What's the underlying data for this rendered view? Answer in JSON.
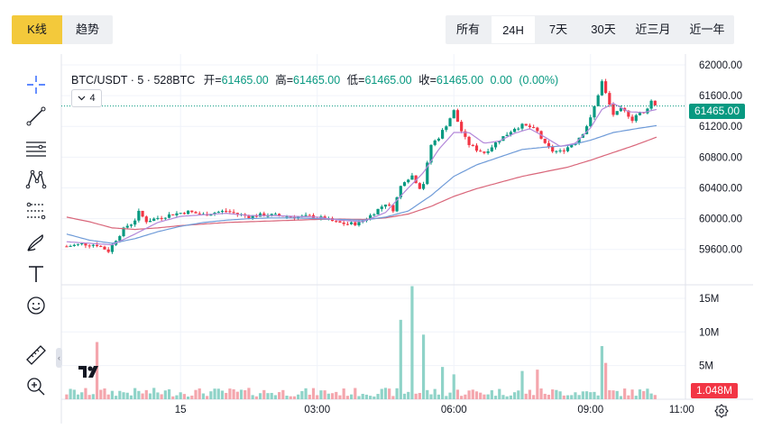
{
  "tabs_left": [
    {
      "label": "K线",
      "active": true
    },
    {
      "label": "趋势",
      "active": false
    }
  ],
  "tabs_right": [
    {
      "label": "所有"
    },
    {
      "label": "24H",
      "active": true
    },
    {
      "label": "7天"
    },
    {
      "label": "30天"
    },
    {
      "label": "近三月"
    },
    {
      "label": "近一年"
    }
  ],
  "tools": [
    "crosshair-icon",
    "trend-line-icon",
    "horizontal-lines-icon",
    "pattern-icon",
    "fib-icon",
    "brush-icon",
    "text-icon",
    "emoji-icon",
    "ruler-icon",
    "zoom-in-icon"
  ],
  "legend": {
    "symbol": "BTC/USDT · 5 · 528BTC",
    "open_label": "开=",
    "open": "61465.00",
    "high_label": "高=",
    "high": "61465.00",
    "low_label": "低=",
    "low": "61465.00",
    "close_label": "收=",
    "close": "61465.00",
    "change": "0.00",
    "change_pct": "(0.00%)"
  },
  "indicator_count": "4",
  "last_price_tag": "61465.00",
  "last_volume_tag": "1.048M",
  "colors": {
    "up": "#089981",
    "down": "#f23645",
    "up_vol": "#8fd3c8",
    "down_vol": "#f4a6ad",
    "ma_fast": "#b388d9",
    "ma_mid": "#6f9bd8",
    "ma_slow": "#d9667a",
    "accent": "#f3c93b"
  },
  "chart_data": {
    "type": "candlestick",
    "price_axis": {
      "ticks": [
        59600,
        60000,
        60400,
        60800,
        61200,
        61600,
        62000
      ],
      "labels": [
        "59600.00",
        "60000.00",
        "60400.00",
        "60800.00",
        "61200.00",
        "61600.00",
        "62000.00"
      ],
      "range": [
        59140,
        62140
      ]
    },
    "volume_axis": {
      "ticks": [
        5000000,
        10000000,
        15000000
      ],
      "labels": [
        "5M",
        "10M",
        "15M"
      ],
      "range": [
        0,
        17000000
      ]
    },
    "time_axis": {
      "labels": [
        "15",
        "03:00",
        "06:00",
        "09:00",
        "11:00"
      ],
      "range_minutes": [
        -157,
        665
      ],
      "label_minutes": [
        0,
        180,
        360,
        540,
        660
      ]
    },
    "last_price": 61465,
    "close_path": [
      [
        -150,
        59640
      ],
      [
        -130,
        59670
      ],
      [
        -110,
        59660
      ],
      [
        -95,
        59580
      ],
      [
        -85,
        59730
      ],
      [
        -72,
        59900
      ],
      [
        -62,
        59950
      ],
      [
        -55,
        60080
      ],
      [
        -45,
        59970
      ],
      [
        -30,
        60010
      ],
      [
        -10,
        60060
      ],
      [
        10,
        60090
      ],
      [
        30,
        60050
      ],
      [
        45,
        60080
      ],
      [
        60,
        60100
      ],
      [
        75,
        60060
      ],
      [
        90,
        60030
      ],
      [
        110,
        60050
      ],
      [
        130,
        60040
      ],
      [
        150,
        60020
      ],
      [
        170,
        60030
      ],
      [
        190,
        60000
      ],
      [
        205,
        59950
      ],
      [
        220,
        59930
      ],
      [
        235,
        59940
      ],
      [
        250,
        60040
      ],
      [
        260,
        60120
      ],
      [
        270,
        60200
      ],
      [
        280,
        60120
      ],
      [
        292,
        60480
      ],
      [
        305,
        60560
      ],
      [
        318,
        60360
      ],
      [
        330,
        60960
      ],
      [
        340,
        61060
      ],
      [
        350,
        61220
      ],
      [
        360,
        61400
      ],
      [
        368,
        61180
      ],
      [
        378,
        60980
      ],
      [
        390,
        60900
      ],
      [
        400,
        60860
      ],
      [
        410,
        60940
      ],
      [
        420,
        61030
      ],
      [
        430,
        61100
      ],
      [
        440,
        61180
      ],
      [
        450,
        61210
      ],
      [
        460,
        61190
      ],
      [
        470,
        61130
      ],
      [
        480,
        60960
      ],
      [
        490,
        60880
      ],
      [
        500,
        60870
      ],
      [
        510,
        60930
      ],
      [
        520,
        61000
      ],
      [
        530,
        61120
      ],
      [
        540,
        61300
      ],
      [
        548,
        61550
      ],
      [
        555,
        61780
      ],
      [
        563,
        61530
      ],
      [
        571,
        61330
      ],
      [
        579,
        61420
      ],
      [
        587,
        61380
      ],
      [
        595,
        61290
      ],
      [
        603,
        61380
      ],
      [
        611,
        61360
      ],
      [
        619,
        61540
      ],
      [
        627,
        61465
      ]
    ],
    "ma_fast": [
      [
        -150,
        59700
      ],
      [
        -120,
        59680
      ],
      [
        -90,
        59660
      ],
      [
        -60,
        59800
      ],
      [
        -30,
        59950
      ],
      [
        0,
        60030
      ],
      [
        30,
        60050
      ],
      [
        60,
        60070
      ],
      [
        90,
        60040
      ],
      [
        120,
        60040
      ],
      [
        150,
        60030
      ],
      [
        180,
        60020
      ],
      [
        210,
        59980
      ],
      [
        240,
        59960
      ],
      [
        270,
        60080
      ],
      [
        300,
        60400
      ],
      [
        320,
        60600
      ],
      [
        340,
        60900
      ],
      [
        360,
        61120
      ],
      [
        380,
        61120
      ],
      [
        400,
        60980
      ],
      [
        420,
        61010
      ],
      [
        440,
        61110
      ],
      [
        460,
        61170
      ],
      [
        480,
        61060
      ],
      [
        500,
        60940
      ],
      [
        520,
        60980
      ],
      [
        540,
        61180
      ],
      [
        555,
        61420
      ],
      [
        570,
        61500
      ],
      [
        590,
        61390
      ],
      [
        610,
        61380
      ],
      [
        627,
        61420
      ]
    ],
    "ma_mid": [
      [
        -150,
        59800
      ],
      [
        -120,
        59720
      ],
      [
        -90,
        59680
      ],
      [
        -60,
        59740
      ],
      [
        -30,
        59830
      ],
      [
        0,
        59900
      ],
      [
        30,
        59950
      ],
      [
        60,
        59980
      ],
      [
        90,
        60000
      ],
      [
        120,
        60010
      ],
      [
        150,
        60010
      ],
      [
        180,
        60000
      ],
      [
        210,
        59990
      ],
      [
        240,
        59980
      ],
      [
        270,
        60020
      ],
      [
        300,
        60100
      ],
      [
        330,
        60300
      ],
      [
        360,
        60550
      ],
      [
        390,
        60700
      ],
      [
        420,
        60800
      ],
      [
        450,
        60900
      ],
      [
        480,
        60930
      ],
      [
        510,
        60950
      ],
      [
        540,
        61020
      ],
      [
        570,
        61120
      ],
      [
        600,
        61170
      ],
      [
        627,
        61210
      ]
    ],
    "ma_slow": [
      [
        -150,
        60020
      ],
      [
        -120,
        59960
      ],
      [
        -90,
        59880
      ],
      [
        -60,
        59860
      ],
      [
        -30,
        59880
      ],
      [
        0,
        59910
      ],
      [
        30,
        59930
      ],
      [
        60,
        59950
      ],
      [
        90,
        59960
      ],
      [
        120,
        59970
      ],
      [
        150,
        59980
      ],
      [
        180,
        59990
      ],
      [
        210,
        59995
      ],
      [
        240,
        59990
      ],
      [
        270,
        60010
      ],
      [
        300,
        60060
      ],
      [
        330,
        60160
      ],
      [
        360,
        60290
      ],
      [
        390,
        60390
      ],
      [
        420,
        60470
      ],
      [
        450,
        60550
      ],
      [
        480,
        60610
      ],
      [
        510,
        60670
      ],
      [
        540,
        60760
      ],
      [
        570,
        60860
      ],
      [
        600,
        60960
      ],
      [
        627,
        61060
      ]
    ],
    "volume_spikes": [
      [
        -110,
        8500000
      ],
      [
        288,
        11800000
      ],
      [
        305,
        16800000
      ],
      [
        322,
        9600000
      ],
      [
        345,
        4800000
      ],
      [
        360,
        3700000
      ],
      [
        450,
        4200000
      ],
      [
        470,
        4400000
      ],
      [
        555,
        7900000
      ],
      [
        560,
        5400000
      ]
    ]
  }
}
